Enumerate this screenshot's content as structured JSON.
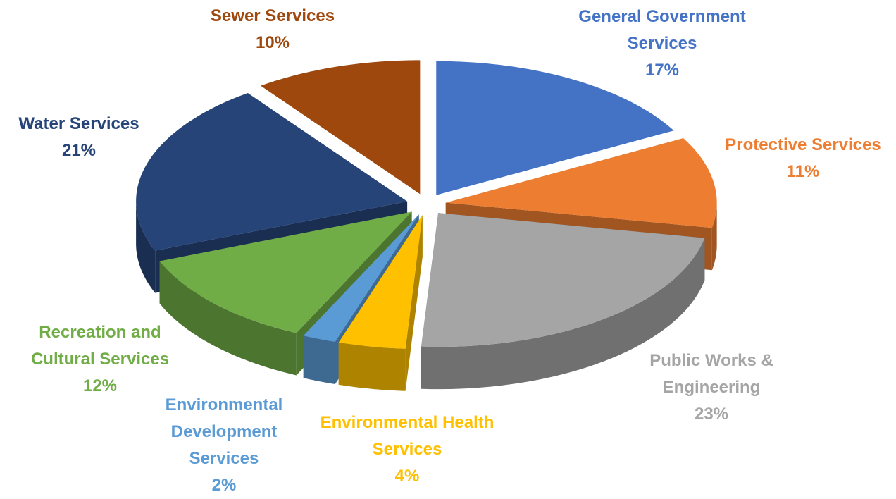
{
  "chart_data": {
    "type": "pie",
    "categories": [
      "General Government Services",
      "Protective Services",
      "Public Works & Engineering",
      "Environmental Health Services",
      "Environmental Development Services",
      "Recreation and Cultural Services",
      "Water Services",
      "Sewer Services"
    ],
    "values": [
      17,
      11,
      23,
      4,
      2,
      12,
      21,
      10
    ],
    "value_labels": [
      "17%",
      "11%",
      "23%",
      "4%",
      "2%",
      "12%",
      "21%",
      "10%"
    ],
    "colors": [
      "#4472c4",
      "#ed7d31",
      "#a5a5a5",
      "#ffc000",
      "#5b9bd5",
      "#70ad47",
      "#264478",
      "#9e480e"
    ]
  }
}
